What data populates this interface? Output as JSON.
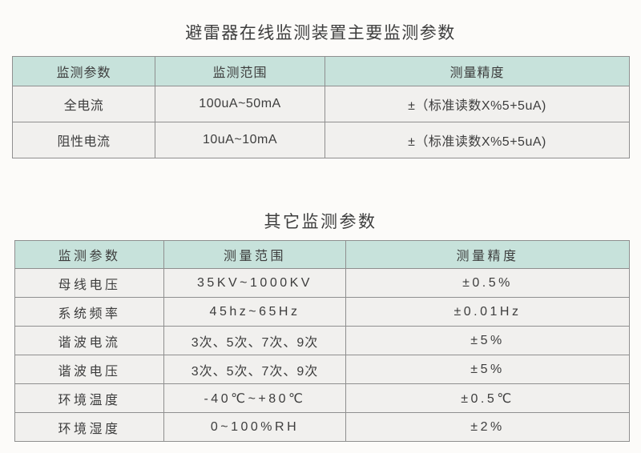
{
  "colors": {
    "page_bg": "#fcfbf9",
    "header_bg": "#c7e2db",
    "row_bg": "#f1f0ee",
    "border": "#8f8f8f",
    "text": "#3d3d3d"
  },
  "table1": {
    "title": "避雷器在线监测装置主要监测参数",
    "headers": [
      "监测参数",
      "监测范围",
      "测量精度"
    ],
    "rows": [
      [
        "全电流",
        "100uA~50mA",
        "±（标准读数X%5+5uA)"
      ],
      [
        "阻性电流",
        "10uA~10mA",
        "±（标准读数X%5+5uA)"
      ]
    ]
  },
  "table2": {
    "title": "其它监测参数",
    "headers": [
      "监测参数",
      "测量范围",
      "测量精度"
    ],
    "rows": [
      [
        "母线电压",
        "35KV~1000KV",
        "±0.5%"
      ],
      [
        "系统频率",
        "45hz~65Hz",
        "±0.01Hz"
      ],
      [
        "谐波电流",
        "3次、5次、7次、9次",
        "±5%"
      ],
      [
        "谐波电压",
        "3次、5次、7次、9次",
        "±5%"
      ],
      [
        "环境温度",
        "-40℃~+80℃",
        "±0.5℃"
      ],
      [
        "环境湿度",
        "0~100%RH",
        "±2%"
      ]
    ]
  }
}
